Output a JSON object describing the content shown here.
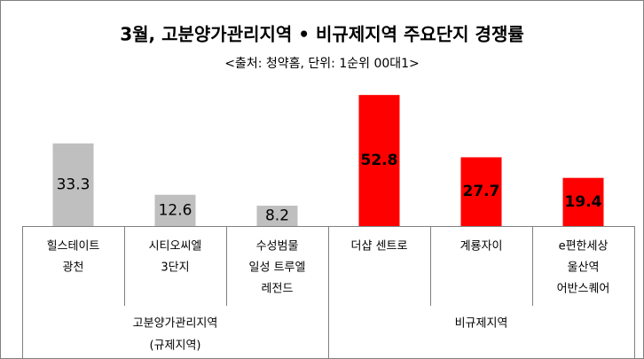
{
  "chart_data": {
    "type": "bar",
    "title": "3월, 고분양가관리지역 • 비규제지역 주요단지 경쟁률",
    "subtitle": "<출처: 청약홈, 단위: 1순위 00대1>",
    "categories": [
      [
        "힐스테이트",
        "광천"
      ],
      [
        "시티오씨엘",
        "3단지"
      ],
      [
        "수성범물",
        "일성 트루엘",
        "레전드"
      ],
      [
        "더샵 센트로"
      ],
      [
        "계룡자이"
      ],
      [
        "e편한세상",
        "울산역",
        "어반스퀘어"
      ]
    ],
    "values": [
      33.3,
      12.6,
      8.2,
      52.8,
      27.7,
      19.4
    ],
    "colors": [
      "#bfbfbf",
      "#bfbfbf",
      "#bfbfbf",
      "#ff0000",
      "#ff0000",
      "#ff0000"
    ],
    "value_label_colors": [
      "#000000",
      "#000000",
      "#000000",
      "#ffffff",
      "#ffffff",
      "#ffffff"
    ],
    "groups": [
      {
        "label": [
          "고분양가관리지역",
          "(규제지역)"
        ],
        "size": 3
      },
      {
        "label": [
          "비규제지역"
        ],
        "size": 3
      }
    ]
  }
}
